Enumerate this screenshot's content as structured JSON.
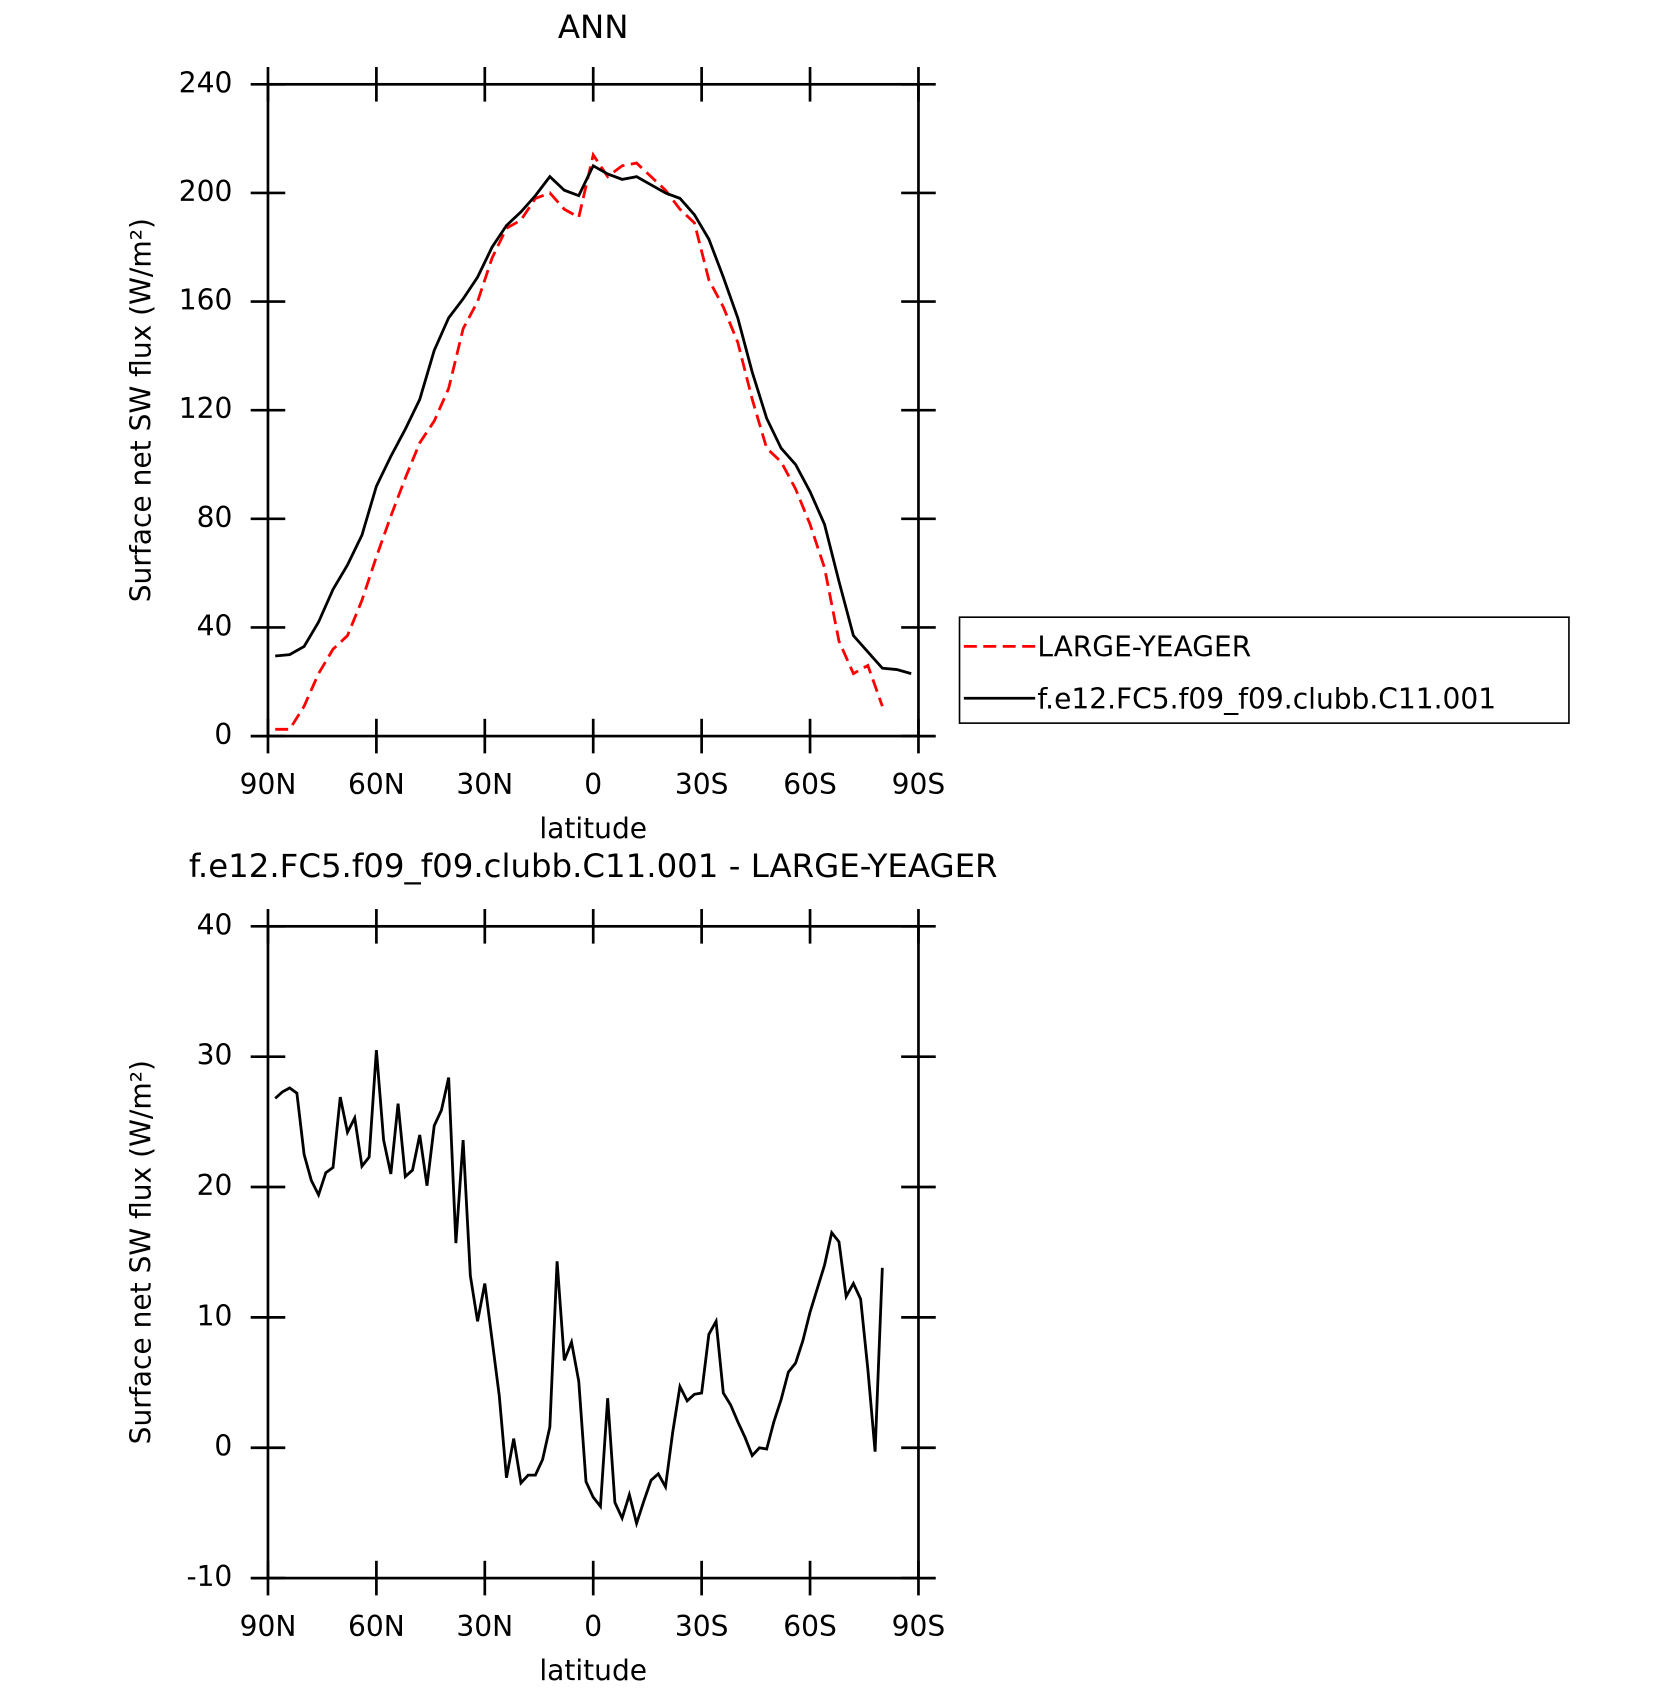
{
  "chart_data": [
    {
      "type": "line",
      "title": "ANN",
      "xlabel": "latitude",
      "ylabel": "Surface net SW flux (W/m²)",
      "xlim": [
        90,
        -90
      ],
      "xticks": [
        {
          "value": 90,
          "label": "90N"
        },
        {
          "value": 60,
          "label": "60N"
        },
        {
          "value": 30,
          "label": "30N"
        },
        0,
        {
          "value": -30,
          "label": "30S"
        },
        {
          "value": -60,
          "label": "60S"
        },
        {
          "value": -90,
          "label": "90S"
        }
      ],
      "ylim": [
        0,
        240
      ],
      "yticks": [
        0,
        40,
        80,
        120,
        160,
        200,
        240
      ],
      "legend": "right",
      "series": [
        {
          "name": "LARGE-YEAGER",
          "color": "#ff0000",
          "style": "dashed",
          "x": [
            88,
            84,
            80,
            76,
            72,
            68,
            64,
            60,
            56,
            52,
            48,
            44,
            40,
            36,
            32,
            28,
            24,
            20,
            16,
            12,
            8,
            4,
            0,
            -4,
            -8,
            -12,
            -16,
            -20,
            -24,
            -28,
            -32,
            -36,
            -40,
            -44,
            -48,
            -52,
            -56,
            -60,
            -64,
            -68,
            -72,
            -76,
            -80
          ],
          "values": [
            2.5,
            2.5,
            11,
            23,
            32,
            37,
            50,
            66,
            81,
            95,
            108,
            116,
            128,
            150,
            160,
            176,
            187,
            190,
            198,
            200,
            194,
            191,
            214,
            206,
            210,
            211,
            206,
            201,
            194,
            189,
            168,
            158,
            145,
            124,
            106,
            101,
            91,
            78,
            62,
            35,
            23,
            26,
            11
          ]
        },
        {
          "name": "f.e12.FC5.f09_f09.clubb.C11.001",
          "color": "#000000",
          "style": "solid",
          "x": [
            88,
            84,
            80,
            76,
            72,
            68,
            64,
            60,
            56,
            52,
            48,
            44,
            40,
            36,
            32,
            28,
            24,
            20,
            16,
            12,
            8,
            4,
            0,
            -4,
            -8,
            -12,
            -16,
            -20,
            -24,
            -28,
            -32,
            -36,
            -40,
            -44,
            -48,
            -52,
            -56,
            -60,
            -64,
            -68,
            -72,
            -76,
            -80,
            -84,
            -88
          ],
          "values": [
            29.5,
            30,
            33,
            42,
            54,
            63,
            74,
            92,
            103,
            113,
            124,
            142,
            154,
            161,
            169,
            180,
            188,
            193,
            199,
            206,
            201,
            199,
            210,
            207,
            205,
            206,
            203,
            200,
            198,
            192,
            183,
            169,
            154,
            134,
            117,
            106,
            100,
            90,
            78,
            57,
            37,
            31,
            25,
            24.5,
            23
          ]
        }
      ]
    },
    {
      "type": "line",
      "title": "f.e12.FC5.f09_f09.clubb.C11.001 - LARGE-YEAGER",
      "xlabel": "latitude",
      "ylabel": "Surface net SW flux (W/m²)",
      "xlim": [
        90,
        -90
      ],
      "xticks": [
        {
          "value": 90,
          "label": "90N"
        },
        {
          "value": 60,
          "label": "60N"
        },
        {
          "value": 30,
          "label": "30N"
        },
        0,
        {
          "value": -30,
          "label": "30S"
        },
        {
          "value": -60,
          "label": "60S"
        },
        {
          "value": -90,
          "label": "90S"
        }
      ],
      "ylim": [
        -10,
        40
      ],
      "yticks": [
        -10,
        0,
        10,
        20,
        30,
        40
      ],
      "series": [
        {
          "color": "#000000",
          "style": "solid",
          "x": [
            88,
            86,
            84,
            82,
            80,
            78,
            76,
            74,
            72,
            70,
            68,
            66,
            64,
            62,
            60,
            58,
            56,
            54,
            52,
            50,
            48,
            46,
            44,
            42,
            40,
            38,
            36,
            34,
            32,
            30,
            28,
            26,
            24,
            22,
            20,
            18,
            16,
            14,
            12,
            10,
            8,
            6,
            4,
            2,
            0,
            -2,
            -4,
            -6,
            -8,
            -10,
            -12,
            -14,
            -16,
            -18,
            -20,
            -22,
            -24,
            -26,
            -28,
            -30,
            -32,
            -34,
            -36,
            -38,
            -40,
            -42,
            -44,
            -46,
            -48,
            -50,
            -52,
            -54,
            -56,
            -58,
            -60,
            -62,
            -64,
            -66,
            -68,
            -70,
            -72,
            -74,
            -76,
            -78,
            -80
          ],
          "values": [
            26.8,
            27.3,
            27.6,
            27.2,
            22.5,
            20.5,
            19.4,
            21.1,
            21.5,
            26.9,
            24.2,
            25.3,
            21.6,
            22.3,
            30.5,
            23.6,
            21,
            26.4,
            20.8,
            21.3,
            24,
            20.1,
            24.7,
            25.9,
            28.4,
            15.7,
            23.6,
            13.2,
            9.7,
            12.6,
            8.3,
            4,
            -2.3,
            0.7,
            -2.7,
            -2.1,
            -2.1,
            -0.9,
            1.6,
            14.3,
            6.7,
            8.1,
            5.1,
            -2.6,
            -3.8,
            -4.5,
            3.8,
            -4.2,
            -5.4,
            -3.6,
            -5.8,
            -4.1,
            -2.5,
            -2,
            -3,
            1.2,
            4.7,
            3.6,
            4.1,
            4.2,
            8.7,
            9.7,
            4.2,
            3.3,
            2,
            0.8,
            -0.6,
            0,
            -0.1,
            2,
            3.7,
            5.8,
            6.5,
            8.2,
            10.4,
            12.2,
            14,
            16.5,
            15.8,
            11.6,
            12.6,
            11.4,
            6,
            -0.3,
            13.8
          ]
        }
      ]
    }
  ]
}
